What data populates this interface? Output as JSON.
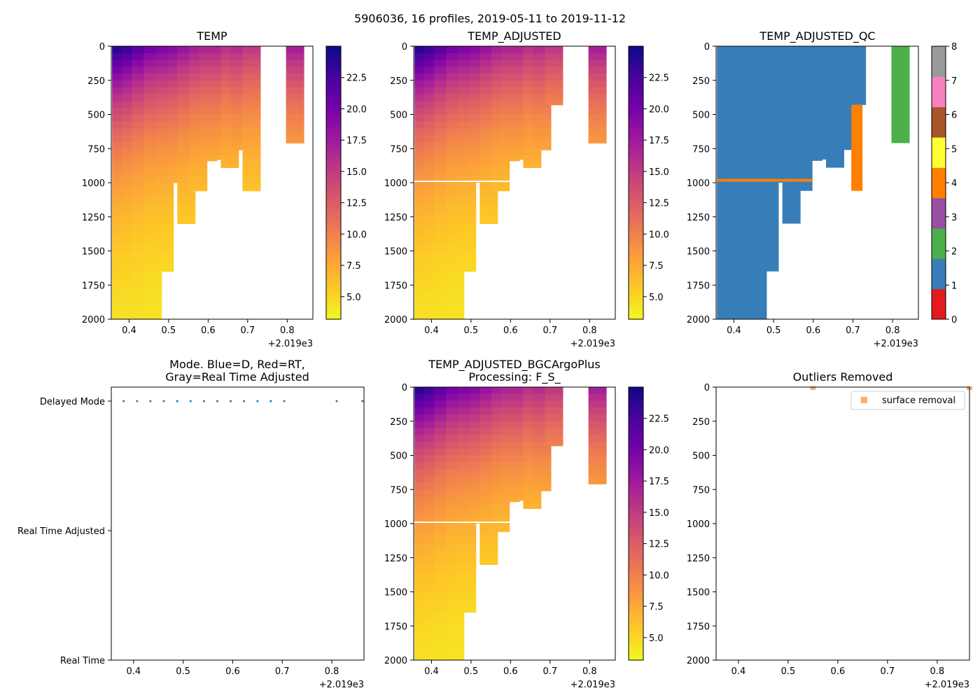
{
  "suptitle": "5906036, 16 profiles, 2019-05-11 to 2019-11-12",
  "x_offset_label": "+2.019e3",
  "colors": {
    "plasma_r": [
      "#f0f921",
      "#fdca26",
      "#fb9f3a",
      "#ed7953",
      "#d8576b",
      "#bd3786",
      "#9c179e",
      "#7201a8",
      "#46039f",
      "#0d0887"
    ],
    "qc": [
      "#e41a1c",
      "#377eb8",
      "#4daf4a",
      "#984ea3",
      "#ff7f00",
      "#ffff33",
      "#a65628",
      "#f781bf",
      "#999999"
    ],
    "mode_dot": "#1f77b4",
    "outlier": "#fdae6b"
  },
  "chart_data": [
    {
      "id": "temp",
      "type": "heatmap",
      "title": "TEMP",
      "x_ticks": [
        "0.4",
        "0.5",
        "0.6",
        "0.7",
        "0.8"
      ],
      "y_ticks": [
        "0",
        "250",
        "500",
        "750",
        "1000",
        "1250",
        "1500",
        "1750",
        "2000"
      ],
      "xlim": [
        0.355,
        0.865
      ],
      "ylim": [
        2000,
        0
      ],
      "colorbar": {
        "min": 3.2,
        "max": 25,
        "ticks": [
          "5.0",
          "7.5",
          "10.0",
          "12.5",
          "15.0",
          "17.5",
          "20.0",
          "22.5"
        ]
      },
      "profiles_x": [
        0.38,
        0.405,
        0.43,
        0.46,
        0.49,
        0.52,
        0.545,
        0.575,
        0.6,
        0.63,
        0.655,
        0.68,
        0.71,
        0.82
      ],
      "profiles_maxdepth": [
        2000,
        2000,
        2000,
        2000,
        1650,
        1000,
        1300,
        1060,
        840,
        830,
        890,
        760,
        1060,
        710
      ],
      "profiles_surface_temp": [
        24.5,
        23.5,
        22,
        20.5,
        20,
        19.5,
        18.5,
        17.5,
        17,
        17,
        16,
        16.5,
        15.5,
        17.5
      ]
    },
    {
      "id": "temp_adjusted",
      "type": "heatmap",
      "title": "TEMP_ADJUSTED",
      "x_ticks": [
        "0.4",
        "0.5",
        "0.6",
        "0.7",
        "0.8"
      ],
      "y_ticks": [
        "0",
        "250",
        "500",
        "750",
        "1000",
        "1250",
        "1500",
        "1750",
        "2000"
      ],
      "xlim": [
        0.355,
        0.865
      ],
      "ylim": [
        2000,
        0
      ],
      "colorbar": {
        "min": 3.2,
        "max": 25,
        "ticks": [
          "5.0",
          "7.5",
          "10.0",
          "12.5",
          "15.0",
          "17.5",
          "20.0",
          "22.5"
        ]
      },
      "gap_depth": 990,
      "profiles_x": [
        0.38,
        0.405,
        0.43,
        0.46,
        0.49,
        0.52,
        0.545,
        0.575,
        0.6,
        0.63,
        0.655,
        0.68,
        0.71,
        0.82
      ],
      "profiles_maxdepth": [
        2000,
        2000,
        2000,
        2000,
        1650,
        1000,
        1300,
        1060,
        840,
        830,
        890,
        760,
        430,
        710
      ],
      "profiles_surface_temp": [
        24.5,
        23.5,
        22,
        20.5,
        20,
        19.5,
        18.5,
        17.5,
        17,
        17,
        16,
        16.5,
        15.5,
        17.5
      ]
    },
    {
      "id": "qc",
      "type": "heatmap",
      "title": "TEMP_ADJUSTED_QC",
      "x_ticks": [
        "0.4",
        "0.5",
        "0.6",
        "0.7",
        "0.8"
      ],
      "y_ticks": [
        "0",
        "250",
        "500",
        "750",
        "1000",
        "1250",
        "1500",
        "1750",
        "2000"
      ],
      "xlim": [
        0.355,
        0.865
      ],
      "ylim": [
        2000,
        0
      ],
      "colorbar": {
        "min": 0,
        "max": 8,
        "ticks": [
          "0",
          "1",
          "2",
          "3",
          "4",
          "5",
          "6",
          "7",
          "8"
        ]
      },
      "bad_flag_depth": 980,
      "bad_profile": {
        "x": 0.71,
        "from": 430,
        "to": 1060,
        "flag": 4
      },
      "probable_profile": {
        "x": 0.82,
        "to": 710,
        "flag": 2
      }
    },
    {
      "id": "mode",
      "type": "scatter",
      "title_line1": "Mode. Blue=D, Red=RT,",
      "title_line2": "Gray=Real Time Adjusted",
      "x_ticks": [
        "0.4",
        "0.5",
        "0.6",
        "0.7",
        "0.8"
      ],
      "xlim": [
        0.355,
        0.865
      ],
      "y_categories": [
        "Delayed Mode",
        "Real Time Adjusted",
        "Real Time"
      ],
      "points_x": [
        0.38,
        0.407,
        0.434,
        0.461,
        0.488,
        0.515,
        0.542,
        0.569,
        0.596,
        0.623,
        0.65,
        0.677,
        0.704,
        0.81,
        0.862
      ],
      "points_mode": "Delayed Mode"
    },
    {
      "id": "bgc",
      "type": "heatmap",
      "title_line1": "TEMP_ADJUSTED_BGCArgoPlus",
      "title_line2": "Processing: F_S_",
      "x_ticks": [
        "0.4",
        "0.5",
        "0.6",
        "0.7",
        "0.8"
      ],
      "y_ticks": [
        "0",
        "250",
        "500",
        "750",
        "1000",
        "1250",
        "1500",
        "1750",
        "2000"
      ],
      "xlim": [
        0.355,
        0.865
      ],
      "ylim": [
        2000,
        0
      ],
      "colorbar": {
        "min": 3.2,
        "max": 25,
        "ticks": [
          "5.0",
          "7.5",
          "10.0",
          "12.5",
          "15.0",
          "17.5",
          "20.0",
          "22.5"
        ]
      },
      "gap_depth": 990,
      "profiles_x": [
        0.38,
        0.405,
        0.43,
        0.46,
        0.49,
        0.52,
        0.545,
        0.575,
        0.6,
        0.63,
        0.655,
        0.68,
        0.71,
        0.82
      ],
      "profiles_maxdepth": [
        2000,
        2000,
        2000,
        2000,
        1650,
        1000,
        1300,
        1060,
        840,
        830,
        890,
        760,
        430,
        710
      ],
      "profiles_surface_temp": [
        24.5,
        23.5,
        22,
        20.5,
        20,
        19.5,
        18.5,
        17.5,
        17,
        17,
        16,
        16.5,
        15.5,
        17.5
      ]
    },
    {
      "id": "outliers",
      "type": "scatter",
      "title": "Outliers Removed",
      "x_ticks": [
        "0.4",
        "0.5",
        "0.6",
        "0.7",
        "0.8"
      ],
      "y_ticks": [
        "0",
        "250",
        "500",
        "750",
        "1000",
        "1250",
        "1500",
        "1750",
        "2000"
      ],
      "xlim": [
        0.355,
        0.865
      ],
      "ylim": [
        2000,
        0
      ],
      "legend": "surface removal",
      "legend_position": "top-right",
      "points": [
        {
          "x": 0.55,
          "y": 0
        },
        {
          "x": 0.865,
          "y": 0
        }
      ]
    }
  ]
}
